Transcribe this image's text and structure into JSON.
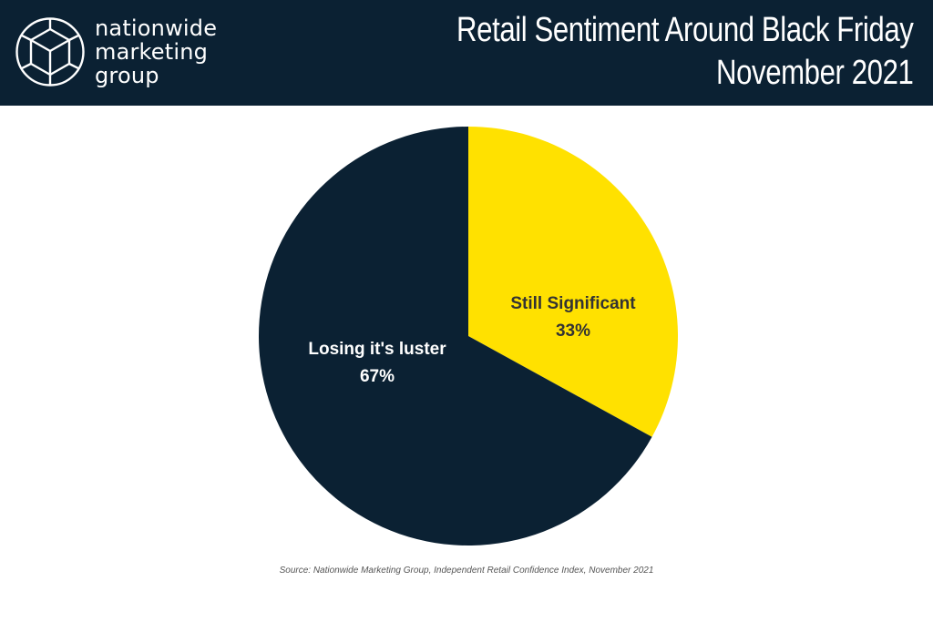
{
  "header": {
    "logo_lines": [
      "nationwide",
      "marketing",
      "group"
    ],
    "title_line1": "Retail Sentiment Around Black Friday",
    "title_line2": "November 2021",
    "background_color": "#0b2133"
  },
  "chart_data": {
    "type": "pie",
    "slices": [
      {
        "label": "Still Significant",
        "value": 33,
        "display": "33%",
        "color": "#ffe100",
        "text_color": "#333333"
      },
      {
        "label": "Losing it's luster",
        "value": 67,
        "display": "67%",
        "color": "#0b2133",
        "text_color": "#ffffff"
      }
    ],
    "start_angle": "12 o'clock",
    "direction": "clockwise",
    "legend": "none"
  },
  "source": "Source: Nationwide Marketing Group, Independent Retail Confidence Index, November 2021"
}
